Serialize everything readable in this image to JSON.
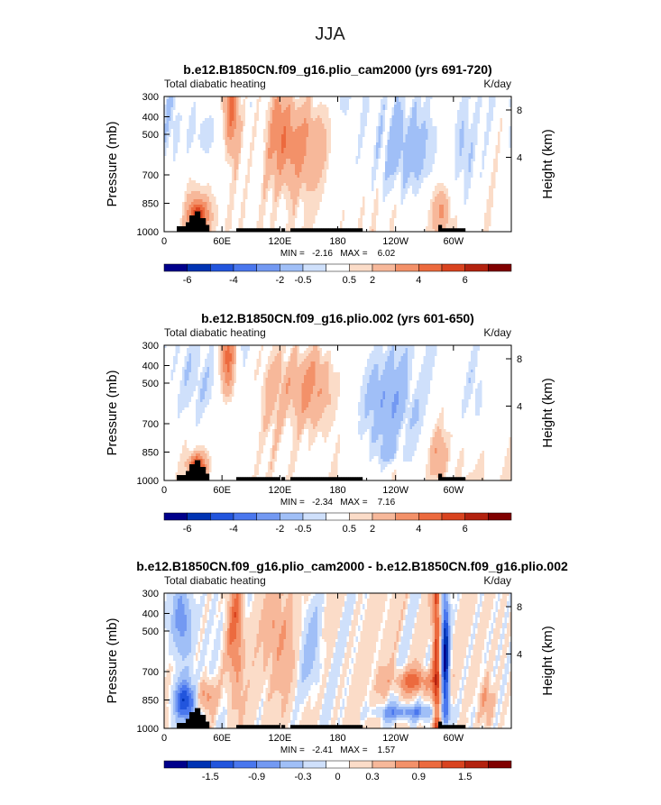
{
  "figure": {
    "title": "JJA"
  },
  "colors": {
    "scale": [
      "#00008b",
      "#0033b3",
      "#2255dd",
      "#4a77ee",
      "#7399f2",
      "#a0bff7",
      "#cfe0fb",
      "#ffffff",
      "#fbdcc8",
      "#f7b89a",
      "#f39169",
      "#ec6a3e",
      "#d9431f",
      "#b3220f",
      "#800000"
    ]
  },
  "chart_data": [
    {
      "type": "heatmap",
      "title": "b.e12.B1850CN.f09_g16.plio_cam2000 (yrs 691-720)",
      "left_label": "Total diabatic heating",
      "right_label": "K/day",
      "ylabel": "Pressure (mb)",
      "y2label": "Height (km)",
      "yticks": [
        "300",
        "400",
        "500",
        "700",
        "850",
        "1000"
      ],
      "y2ticks": [
        "8",
        "4"
      ],
      "xticks": [
        "0",
        "60E",
        "120E",
        "180",
        "120W",
        "60W"
      ],
      "stats": "MIN =   -2.16   MAX =    6.02",
      "colorbar_labels": [
        "-6",
        "-4",
        "-2",
        "-0.5",
        "0.5",
        "2",
        "4",
        "6"
      ],
      "min": -2.16,
      "max": 6.02
    },
    {
      "type": "heatmap",
      "title": "b.e12.B1850CN.f09_g16.plio.002 (yrs 601-650)",
      "left_label": "Total diabatic heating",
      "right_label": "K/day",
      "ylabel": "Pressure (mb)",
      "y2label": "Height (km)",
      "yticks": [
        "300",
        "400",
        "500",
        "700",
        "850",
        "1000"
      ],
      "y2ticks": [
        "8",
        "4"
      ],
      "xticks": [
        "0",
        "60E",
        "120E",
        "180",
        "120W",
        "60W"
      ],
      "stats": "MIN =   -2.34   MAX =    7.16",
      "colorbar_labels": [
        "-6",
        "-4",
        "-2",
        "-0.5",
        "0.5",
        "2",
        "4",
        "6"
      ],
      "min": -2.34,
      "max": 7.16
    },
    {
      "type": "heatmap",
      "title": "b.e12.B1850CN.f09_g16.plio_cam2000 - b.e12.B1850CN.f09_g16.plio.002",
      "left_label": "Total diabatic heating",
      "right_label": "K/day",
      "ylabel": "Pressure (mb)",
      "y2label": "Height (km)",
      "yticks": [
        "300",
        "400",
        "500",
        "700",
        "850",
        "1000"
      ],
      "y2ticks": [
        "8",
        "4"
      ],
      "xticks": [
        "0",
        "60E",
        "120E",
        "180",
        "120W",
        "60W"
      ],
      "stats": "MIN =   -2.41   MAX =    1.57",
      "colorbar_labels": [
        "-1.5",
        "-0.9",
        "-0.3",
        "0",
        "0.3",
        "0.9",
        "1.5"
      ],
      "min": -2.41,
      "max": 1.57
    }
  ]
}
